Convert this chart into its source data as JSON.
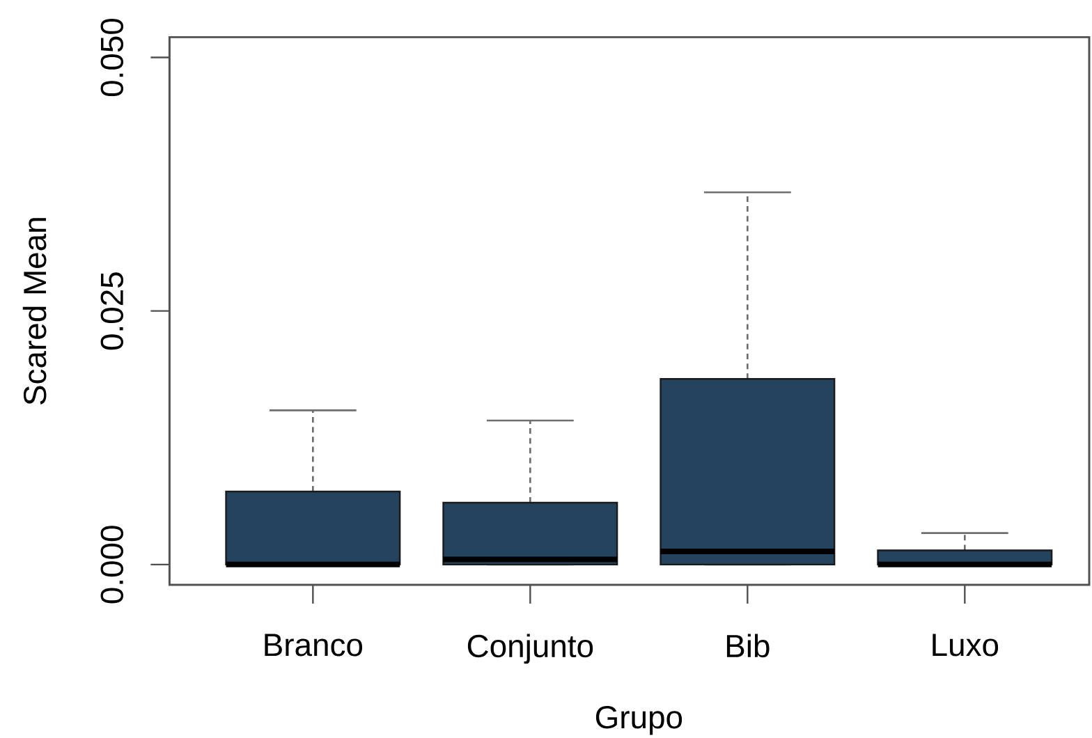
{
  "chart_data": {
    "type": "box",
    "xlabel": "Grupo",
    "ylabel": "Scared Mean",
    "categories": [
      "Branco",
      "Conjunto",
      "Bib",
      "Luxo"
    ],
    "color": "#24435f",
    "boxes": [
      {
        "low": 0,
        "q1": 0,
        "median": 0,
        "q3": 0.0072,
        "high": 0.0152
      },
      {
        "low": 0,
        "q1": 0,
        "median": 0.0005,
        "q3": 0.0061,
        "high": 0.0142
      },
      {
        "low": 0,
        "q1": 0,
        "median": 0.0013,
        "q3": 0.0183,
        "high": 0.0367
      },
      {
        "low": 0,
        "q1": 0,
        "median": 0,
        "q3": 0.0014,
        "high": 0.0031
      }
    ],
    "ylim": [
      -0.002,
      0.052
    ],
    "yticks": [
      {
        "value": 0,
        "label": "0.000"
      },
      {
        "value": 0.025,
        "label": "0.025"
      },
      {
        "value": 0.05,
        "label": "0.050"
      }
    ]
  }
}
